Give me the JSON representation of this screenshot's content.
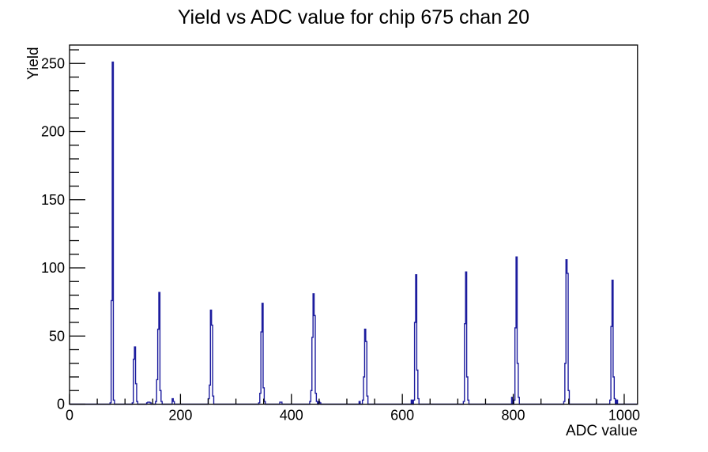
{
  "page": {
    "background": "#ffffff"
  },
  "chart_data": {
    "type": "histogram",
    "title": "Yield vs ADC value for chip 675 chan 20",
    "xlabel": "ADC value",
    "ylabel": "Yield",
    "xlim": [
      0,
      1024
    ],
    "ylim": [
      0,
      263.5
    ],
    "grid": false,
    "legend": null,
    "line_color": "#1c1c9e",
    "axis_color": "#000000",
    "x_ticks": {
      "major": [
        0,
        200,
        400,
        600,
        800,
        1000
      ],
      "major_labels": [
        "0",
        "200",
        "400",
        "600",
        "800",
        "1000"
      ],
      "minor_step": 50
    },
    "y_ticks": {
      "major": [
        0,
        50,
        100,
        150,
        200,
        250
      ],
      "major_labels": [
        "0",
        "50",
        "100",
        "150",
        "200",
        "250"
      ],
      "minor_step": 10
    },
    "bin_width": 2,
    "peaks": [
      {
        "adc": 78,
        "yield": 251
      },
      {
        "adc": 118,
        "yield": 42
      },
      {
        "adc": 162,
        "yield": 82
      },
      {
        "adc": 255,
        "yield": 69
      },
      {
        "adc": 348,
        "yield": 74
      },
      {
        "adc": 440,
        "yield": 81
      },
      {
        "adc": 533,
        "yield": 55
      },
      {
        "adc": 625,
        "yield": 95
      },
      {
        "adc": 715,
        "yield": 97
      },
      {
        "adc": 806,
        "yield": 108
      },
      {
        "adc": 896,
        "yield": 106
      },
      {
        "adc": 979,
        "yield": 91
      }
    ],
    "bins": [
      [
        74,
        1
      ],
      [
        76,
        76
      ],
      [
        78,
        251
      ],
      [
        80,
        3
      ],
      [
        114,
        1
      ],
      [
        116,
        33
      ],
      [
        118,
        42
      ],
      [
        120,
        15
      ],
      [
        122,
        2
      ],
      [
        140,
        1
      ],
      [
        142,
        1.5
      ],
      [
        144,
        1.5
      ],
      [
        146,
        1
      ],
      [
        156,
        2
      ],
      [
        158,
        18
      ],
      [
        160,
        55
      ],
      [
        162,
        82
      ],
      [
        164,
        10
      ],
      [
        166,
        2
      ],
      [
        186,
        4
      ],
      [
        188,
        2
      ],
      [
        251,
        4
      ],
      [
        253,
        14
      ],
      [
        255,
        69
      ],
      [
        257,
        58
      ],
      [
        259,
        6
      ],
      [
        342,
        1
      ],
      [
        344,
        8
      ],
      [
        346,
        53
      ],
      [
        348,
        74
      ],
      [
        350,
        12
      ],
      [
        352,
        2
      ],
      [
        380,
        1.5
      ],
      [
        382,
        1.5
      ],
      [
        434,
        2
      ],
      [
        436,
        10
      ],
      [
        438,
        49
      ],
      [
        440,
        81
      ],
      [
        442,
        65
      ],
      [
        444,
        8
      ],
      [
        446,
        2
      ],
      [
        450,
        2
      ],
      [
        452,
        1
      ],
      [
        523,
        2
      ],
      [
        529,
        3
      ],
      [
        531,
        20
      ],
      [
        533,
        55
      ],
      [
        535,
        46
      ],
      [
        537,
        6
      ],
      [
        617,
        3
      ],
      [
        621,
        3
      ],
      [
        623,
        60
      ],
      [
        625,
        95
      ],
      [
        627,
        25
      ],
      [
        629,
        4
      ],
      [
        711,
        2
      ],
      [
        713,
        59
      ],
      [
        715,
        97
      ],
      [
        717,
        20
      ],
      [
        719,
        3
      ],
      [
        798,
        5
      ],
      [
        802,
        3
      ],
      [
        804,
        56
      ],
      [
        806,
        108
      ],
      [
        808,
        30
      ],
      [
        810,
        5
      ],
      [
        892,
        2
      ],
      [
        894,
        30
      ],
      [
        896,
        106
      ],
      [
        898,
        96
      ],
      [
        900,
        10
      ],
      [
        975,
        3
      ],
      [
        977,
        57
      ],
      [
        979,
        91
      ],
      [
        981,
        20
      ],
      [
        983,
        4
      ],
      [
        987,
        3
      ]
    ]
  }
}
